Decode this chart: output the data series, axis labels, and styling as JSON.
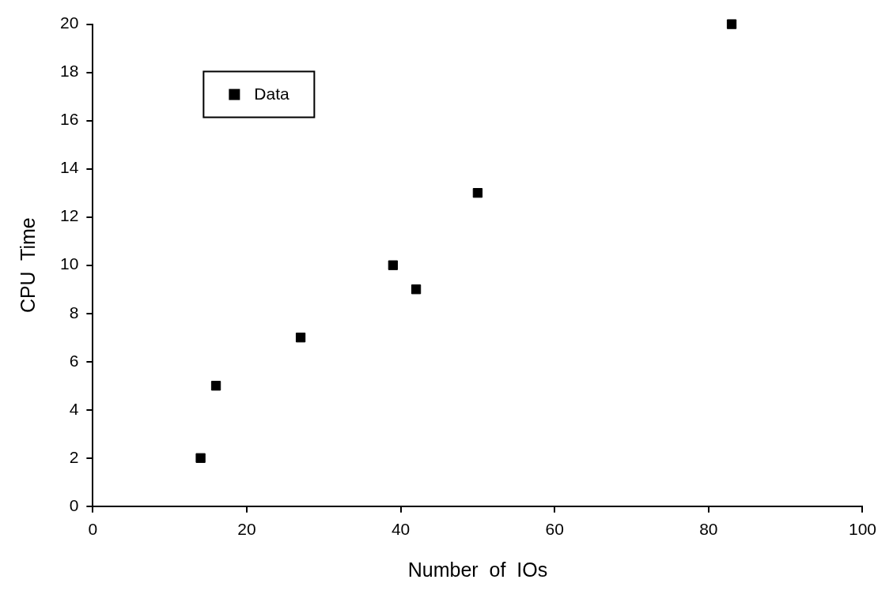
{
  "chart_data": {
    "type": "scatter",
    "xlabel": "Number  of  IOs",
    "ylabel": "CPU  Time",
    "x": [
      14,
      16,
      27,
      39,
      42,
      50,
      83
    ],
    "series": [
      {
        "name": "Data",
        "color": "#000000",
        "values": [
          2,
          5,
          7,
          10,
          9,
          13,
          20
        ]
      }
    ],
    "xlim": [
      0,
      100
    ],
    "xticks": [
      0,
      20,
      40,
      60,
      80,
      100
    ],
    "ylim": [
      0,
      20
    ],
    "yticks": [
      0,
      2,
      4,
      6,
      8,
      10,
      12,
      14,
      16,
      18,
      20
    ],
    "grid": false,
    "legend": "top left",
    "marker": "square"
  }
}
